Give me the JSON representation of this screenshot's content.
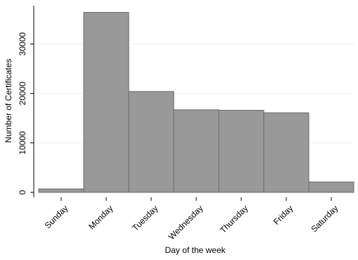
{
  "chart_data": {
    "type": "bar",
    "xlabel": "Day of the week",
    "ylabel": "Number of Certificates",
    "categories": [
      "Sunday",
      "Monday",
      "Tuesday",
      "Wednesday",
      "Thursday",
      "Friday",
      "Saturday"
    ],
    "values": [
      700,
      36400,
      20400,
      16700,
      16600,
      16100,
      2100
    ],
    "ylim": [
      0,
      37000
    ],
    "yticks": [
      0,
      10000,
      20000,
      30000
    ],
    "ytick_labels": [
      "0",
      "10000",
      "20000",
      "30000"
    ],
    "grid": true,
    "bar_color": "#999999",
    "bar_edge_color": "#666666",
    "grid_color": "#eaf2f3"
  }
}
